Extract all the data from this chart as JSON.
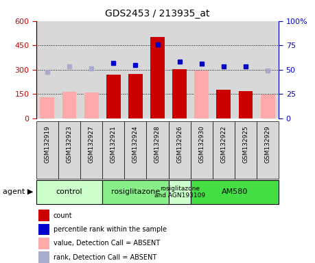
{
  "title": "GDS2453 / 213935_at",
  "samples": [
    "GSM132919",
    "GSM132923",
    "GSM132927",
    "GSM132921",
    "GSM132924",
    "GSM132928",
    "GSM132926",
    "GSM132930",
    "GSM132922",
    "GSM132925",
    "GSM132929"
  ],
  "bar_values": [
    null,
    null,
    null,
    270,
    275,
    500,
    305,
    null,
    175,
    170,
    null
  ],
  "bar_absent_values": [
    130,
    165,
    160,
    null,
    null,
    null,
    null,
    295,
    null,
    null,
    145
  ],
  "percentile_values": [
    null,
    null,
    null,
    57,
    55,
    76,
    58,
    56,
    53,
    53,
    null
  ],
  "percentile_absent_values": [
    48,
    53,
    51,
    null,
    null,
    null,
    null,
    null,
    null,
    null,
    49
  ],
  "bar_color": "#cc0000",
  "bar_absent_color": "#ffaaaa",
  "percentile_color": "#0000cc",
  "percentile_absent_color": "#aaaacc",
  "ylim_left": [
    0,
    600
  ],
  "ylim_right": [
    0,
    100
  ],
  "yticks_left": [
    0,
    150,
    300,
    450,
    600
  ],
  "yticks_right": [
    0,
    25,
    50,
    75,
    100
  ],
  "ytick_labels_left": [
    "0",
    "150",
    "300",
    "450",
    "600"
  ],
  "ytick_labels_right": [
    "0",
    "25",
    "50",
    "75",
    "100%"
  ],
  "agent_groups": [
    {
      "label": "control",
      "start": 0,
      "end": 2,
      "color": "#ccffcc"
    },
    {
      "label": "rosiglitazone",
      "start": 3,
      "end": 5,
      "color": "#88ee88"
    },
    {
      "label": "rosiglitazone\nand AGN193109",
      "start": 6,
      "end": 6,
      "color": "#ccffcc"
    },
    {
      "label": "AM580",
      "start": 7,
      "end": 10,
      "color": "#44dd44"
    }
  ],
  "legend_items": [
    {
      "label": "count",
      "color": "#cc0000"
    },
    {
      "label": "percentile rank within the sample",
      "color": "#0000cc"
    },
    {
      "label": "value, Detection Call = ABSENT",
      "color": "#ffaaaa"
    },
    {
      "label": "rank, Detection Call = ABSENT",
      "color": "#aaaacc"
    }
  ],
  "left_axis_color": "#cc0000",
  "right_axis_color": "#0000cc",
  "col_bg_color": "#d8d8d8",
  "grid_color": "black",
  "hgrid_ticks": [
    150,
    300,
    450
  ]
}
